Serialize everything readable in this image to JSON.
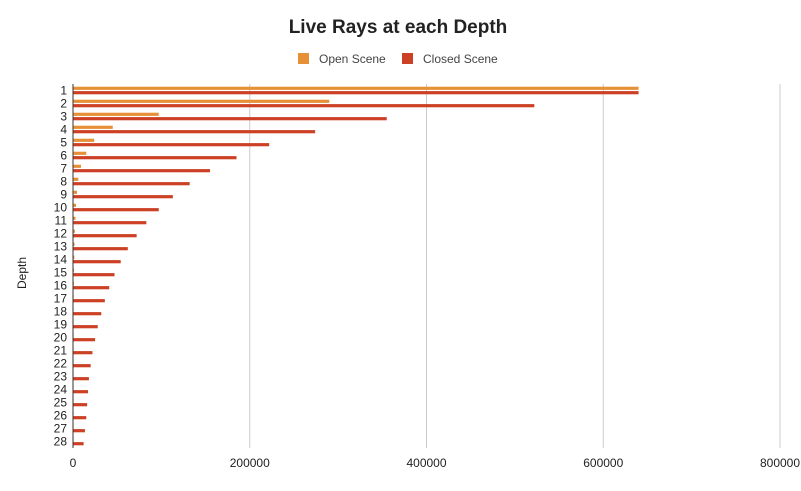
{
  "chart_data": {
    "type": "bar",
    "orientation": "horizontal",
    "title": "Live Rays at each Depth",
    "xlabel": "",
    "ylabel": "Depth",
    "xlim": [
      0,
      800000
    ],
    "x_ticks": [
      "0",
      "200000",
      "400000",
      "600000",
      "800000"
    ],
    "grid": true,
    "legend_position": "top",
    "categories": [
      "1",
      "2",
      "3",
      "4",
      "5",
      "6",
      "7",
      "8",
      "9",
      "10",
      "11",
      "12",
      "13",
      "14",
      "15",
      "16",
      "17",
      "18",
      "19",
      "20",
      "21",
      "22",
      "23",
      "24",
      "25",
      "26",
      "27",
      "28"
    ],
    "series": [
      {
        "name": "Open Scene",
        "color": "#e69138",
        "values": [
          640000,
          290000,
          97000,
          45000,
          24000,
          15000,
          9000,
          6000,
          4500,
          3500,
          2800,
          2200,
          1800,
          1500,
          1200,
          1000,
          800,
          700,
          600,
          500,
          450,
          400,
          350,
          300,
          250,
          200,
          180,
          150
        ]
      },
      {
        "name": "Closed Scene",
        "color": "#cc4125",
        "values": [
          640000,
          522000,
          355000,
          274000,
          222000,
          185000,
          155000,
          132000,
          113000,
          97000,
          83000,
          72000,
          62000,
          54000,
          47000,
          41000,
          36000,
          32000,
          28000,
          25000,
          22000,
          20000,
          18000,
          17000,
          16000,
          15000,
          13500,
          12000
        ]
      }
    ]
  }
}
